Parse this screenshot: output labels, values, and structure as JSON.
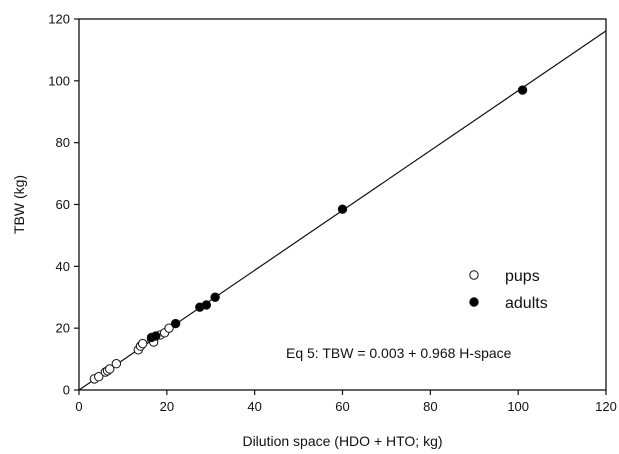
{
  "chart_data": {
    "type": "scatter",
    "title": "",
    "xlabel": "Dilution space (HDO + HTO; kg)",
    "ylabel": "TBW (kg)",
    "xlim": [
      0,
      120
    ],
    "ylim": [
      0,
      120
    ],
    "xticks": [
      0,
      20,
      40,
      60,
      80,
      100,
      120
    ],
    "yticks": [
      0,
      20,
      40,
      60,
      80,
      100,
      120
    ],
    "grid": false,
    "legend_position": "right-middle",
    "series": [
      {
        "name": "pups",
        "marker": "open-circle",
        "x": [
          3.5,
          4.5,
          6.0,
          6.5,
          7.0,
          8.5,
          13.5,
          14.0,
          14.5,
          16.5,
          17.0,
          18.5,
          19.5,
          20.5
        ],
        "y": [
          3.6,
          4.3,
          5.8,
          6.2,
          6.8,
          8.5,
          13.0,
          14.2,
          15.0,
          16.5,
          15.5,
          17.8,
          18.5,
          20.0
        ]
      },
      {
        "name": "adults",
        "marker": "filled-circle",
        "x": [
          16.5,
          17.5,
          22.0,
          27.5,
          29.0,
          31.0,
          60.0,
          101.0
        ],
        "y": [
          17.0,
          17.5,
          21.5,
          26.8,
          27.5,
          30.0,
          58.5,
          97.0
        ]
      }
    ],
    "fit_line": {
      "intercept": 0.003,
      "slope": 0.968,
      "x_range": [
        0,
        123
      ]
    },
    "annotation": "Eq 5: TBW = 0.003 + 0.968 H-space",
    "colors": {
      "axis": "#111111",
      "marker_fill_adults": "#000000",
      "marker_fill_pups": "#ffffff"
    }
  }
}
